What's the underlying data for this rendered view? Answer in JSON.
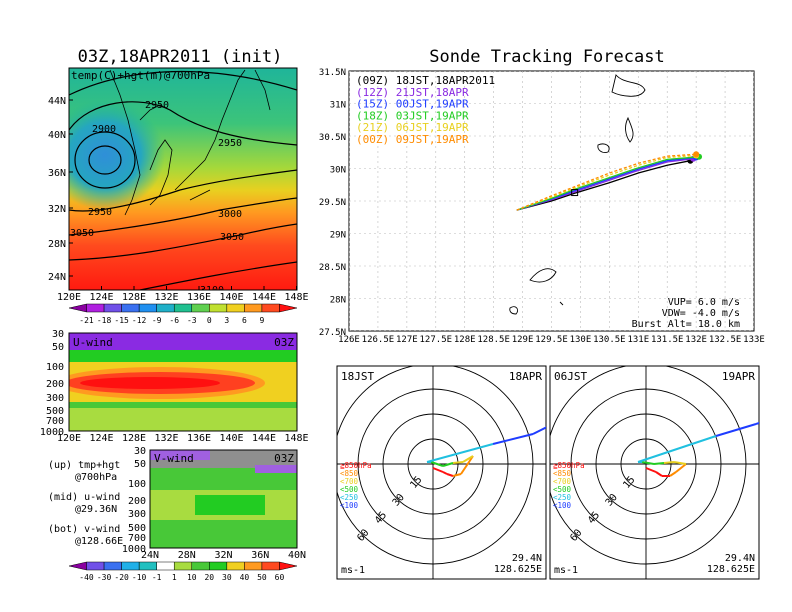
{
  "left_title": "03Z,18APR2011 (init)",
  "right_title": "Sonde Tracking Forecast",
  "colors": {
    "purple": "#8a2be2",
    "orange_line": "#ff8c00",
    "green": "#22cc22",
    "blue": "#1e3cff",
    "yellow": "#e8d020",
    "red": "#ff1010"
  },
  "map_panel": {
    "label": "temp(C)+hgt(m)@700hPa",
    "lat_ticks": [
      "44N",
      "40N",
      "36N",
      "32N",
      "28N",
      "24N"
    ],
    "lon_ticks": [
      "120E",
      "124E",
      "128E",
      "132E",
      "136E",
      "140E",
      "144E",
      "148E"
    ],
    "contour_labels": [
      "2950",
      "2900",
      "2950",
      "2950",
      "3000",
      "3050",
      "3050",
      "3100"
    ],
    "colorbar_ticks": [
      "-21",
      "-18",
      "-15",
      "-12",
      "-9",
      "-6",
      "-3",
      "0",
      "3",
      "6",
      "9"
    ]
  },
  "uwind_panel": {
    "label": "U-wind",
    "time": "03Z",
    "y_ticks": [
      "30",
      "50",
      "100",
      "200",
      "300",
      "500",
      "700",
      "1000"
    ],
    "x_ticks": [
      "120E",
      "124E",
      "128E",
      "132E",
      "136E",
      "140E",
      "144E",
      "148E"
    ]
  },
  "vwind_panel": {
    "label": "V-wind",
    "time": "03Z",
    "y_ticks": [
      "30",
      "50",
      "100",
      "200",
      "300",
      "500",
      "700",
      "1000"
    ],
    "x_ticks": [
      "24N",
      "28N",
      "32N",
      "36N",
      "40N"
    ]
  },
  "side_legend": {
    "up1": "(up) tmp+hgt",
    "up2": "@700hPa",
    "mid1": "(mid) u-wind",
    "mid2": "@29.36N",
    "bot1": "(bot) v-wind",
    "bot2": "@128.66E"
  },
  "wind_colorbar_ticks": [
    "-40",
    "-30",
    "-20",
    "-10",
    "-1",
    "1",
    "10",
    "20",
    "30",
    "40",
    "50",
    "60"
  ],
  "track_panel": {
    "runs": [
      {
        "label": "(09Z)  18JST,18APR2011",
        "color": "#000000"
      },
      {
        "label": "(12Z)  21JST,18APR",
        "color": "#8a2be2"
      },
      {
        "label": "(15Z)  00JST,19APR",
        "color": "#1e3cff"
      },
      {
        "label": "(18Z)  03JST,19APR",
        "color": "#22cc22"
      },
      {
        "label": "(21Z)  06JST,19APR",
        "color": "#e8d020"
      },
      {
        "label": "(00Z)  09JST,19APR",
        "color": "#ff8c00"
      }
    ],
    "lat_ticks": [
      "31.5N",
      "31N",
      "30.5N",
      "30N",
      "29.5N",
      "29N",
      "28.5N",
      "28N",
      "27.5N"
    ],
    "lon_ticks": [
      "126E",
      "126.5E",
      "127E",
      "127.5E",
      "128E",
      "128.5E",
      "129E",
      "129.5E",
      "130E",
      "130.5E",
      "131E",
      "131.5E",
      "132E",
      "132.5E",
      "133E"
    ],
    "vup": "VUP=  6.0  m/s",
    "vdw": "VDW=  -4.0  m/s",
    "burst": "Burst Alt=  18.0  km"
  },
  "chart_data": [
    {
      "type": "line",
      "title": "Sonde Tracking Forecast",
      "xlim": [
        126,
        133
      ],
      "ylim": [
        27.5,
        31.5
      ],
      "series": [
        {
          "name": "(09Z)  18JST,18APR2011",
          "x": [
            128.9,
            129.5,
            129.9,
            130.5,
            131.0,
            131.5,
            131.9
          ],
          "y": [
            29.36,
            29.5,
            29.62,
            29.78,
            29.93,
            30.05,
            30.12
          ]
        },
        {
          "name": "(12Z)  21JST,18APR",
          "x": [
            128.9,
            129.5,
            129.9,
            130.5,
            131.0,
            131.5,
            131.95
          ],
          "y": [
            29.36,
            29.52,
            29.64,
            29.82,
            29.97,
            30.1,
            30.15
          ]
        },
        {
          "name": "(15Z)  00JST,19APR",
          "x": [
            128.9,
            129.5,
            129.9,
            130.5,
            131.0,
            131.5,
            132.0
          ],
          "y": [
            29.36,
            29.53,
            29.66,
            29.84,
            29.99,
            30.12,
            30.17
          ]
        },
        {
          "name": "(18Z)  03JST,19APR",
          "x": [
            128.9,
            129.5,
            129.9,
            130.5,
            131.0,
            131.5,
            132.05
          ],
          "y": [
            29.36,
            29.54,
            29.68,
            29.86,
            30.01,
            30.14,
            30.18
          ]
        },
        {
          "name": "(21Z)  06JST,19APR",
          "x": [
            128.9,
            129.5,
            129.9,
            130.5,
            131.0,
            131.5,
            132.0
          ],
          "y": [
            29.36,
            29.56,
            29.7,
            29.9,
            30.05,
            30.17,
            30.2
          ]
        },
        {
          "name": "(00Z)  09JST,19APR",
          "x": [
            128.9,
            129.5,
            129.9,
            130.5,
            131.0,
            131.5,
            132.0
          ],
          "y": [
            29.36,
            29.58,
            29.72,
            29.93,
            30.08,
            30.19,
            30.22
          ]
        }
      ]
    }
  ],
  "polar_left": {
    "time": "18JST",
    "date": "18APR",
    "ring_labels": [
      "15",
      "30",
      "45",
      "60"
    ],
    "lat": "29.4N",
    "lon": "128.625E",
    "unit": "ms-1",
    "levels": [
      {
        "label": "≧850hPa",
        "color": "#ff1010"
      },
      {
        "label": "<850",
        "color": "#ff8c00"
      },
      {
        "label": "<700",
        "color": "#e8d020"
      },
      {
        "label": "<500",
        "color": "#22cc22"
      },
      {
        "label": "<250",
        "color": "#20c0e0"
      },
      {
        "label": "<100",
        "color": "#1e3cff"
      }
    ]
  },
  "polar_right": {
    "time": "06JST",
    "date": "19APR",
    "ring_labels": [
      "15",
      "30",
      "45",
      "60"
    ],
    "lat": "29.4N",
    "lon": "128.625E",
    "unit": "ms-1",
    "levels": [
      {
        "label": "≧850hPa",
        "color": "#ff1010"
      },
      {
        "label": "<850",
        "color": "#ff8c00"
      },
      {
        "label": "<700",
        "color": "#e8d020"
      },
      {
        "label": "<500",
        "color": "#22cc22"
      },
      {
        "label": "<250",
        "color": "#20c0e0"
      },
      {
        "label": "<100",
        "color": "#1e3cff"
      }
    ]
  }
}
